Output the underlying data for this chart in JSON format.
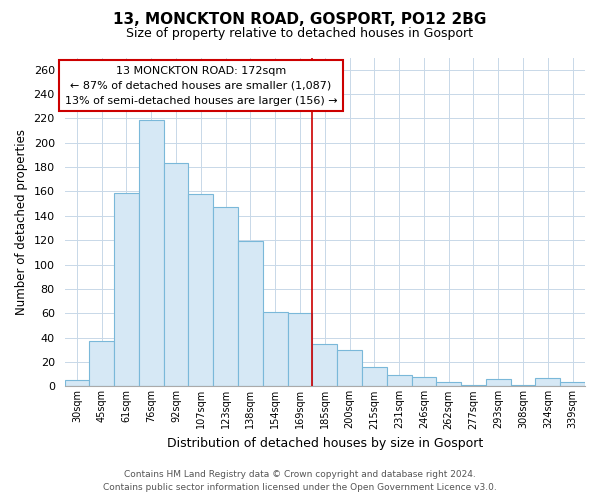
{
  "title_line1": "13, MONCKTON ROAD, GOSPORT, PO12 2BG",
  "title_line2": "Size of property relative to detached houses in Gosport",
  "xlabel": "Distribution of detached houses by size in Gosport",
  "ylabel": "Number of detached properties",
  "categories": [
    "30sqm",
    "45sqm",
    "61sqm",
    "76sqm",
    "92sqm",
    "107sqm",
    "123sqm",
    "138sqm",
    "154sqm",
    "169sqm",
    "185sqm",
    "200sqm",
    "215sqm",
    "231sqm",
    "246sqm",
    "262sqm",
    "277sqm",
    "293sqm",
    "308sqm",
    "324sqm",
    "339sqm"
  ],
  "values": [
    5,
    37,
    159,
    219,
    183,
    158,
    147,
    119,
    61,
    60,
    35,
    30,
    16,
    9,
    8,
    4,
    1,
    6,
    1,
    7,
    4
  ],
  "bar_color": "#d6e8f5",
  "bar_edge_color": "#7ab8d9",
  "vline_color": "#cc0000",
  "annotation_box_edge": "#cc0000",
  "annotation_title": "13 MONCKTON ROAD: 172sqm",
  "annotation_line1": "← 87% of detached houses are smaller (1,087)",
  "annotation_line2": "13% of semi-detached houses are larger (156) →",
  "ylim": [
    0,
    270
  ],
  "yticks": [
    0,
    20,
    40,
    60,
    80,
    100,
    120,
    140,
    160,
    180,
    200,
    220,
    240,
    260
  ],
  "footer_line1": "Contains HM Land Registry data © Crown copyright and database right 2024.",
  "footer_line2": "Contains public sector information licensed under the Open Government Licence v3.0.",
  "background_color": "#ffffff",
  "grid_color": "#c8d8e8"
}
